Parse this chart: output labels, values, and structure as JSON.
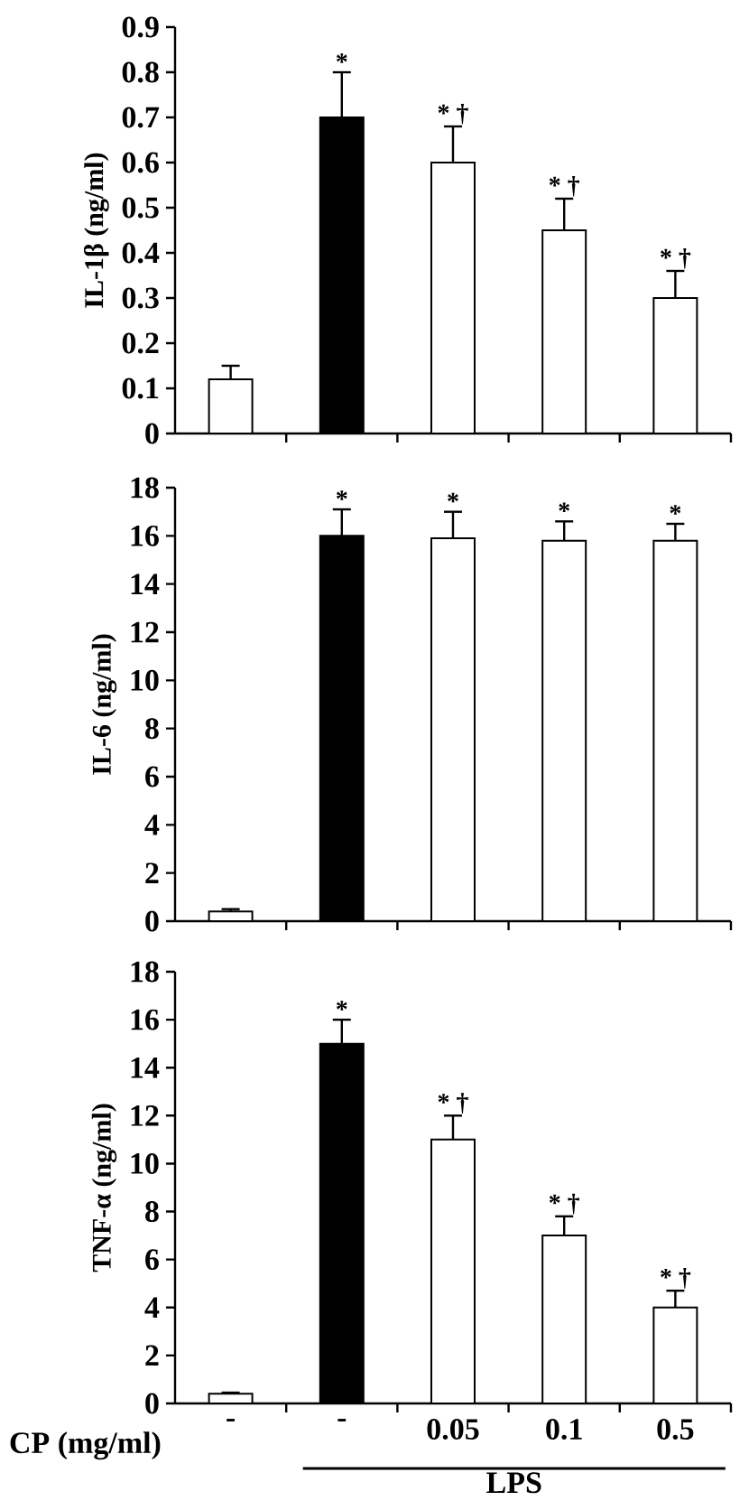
{
  "chart_data": [
    {
      "type": "bar",
      "ylabel": "IL-1β (ng/ml)",
      "categories": [
        null,
        null,
        null,
        null,
        null
      ],
      "values": [
        0.12,
        0.7,
        0.6,
        0.45,
        0.3
      ],
      "colors": [
        "#ffffff",
        "#000000",
        "#ffffff",
        "#ffffff",
        "#ffffff"
      ],
      "errors": [
        [
          0.12,
          0.15
        ],
        [
          0.7,
          0.8
        ],
        [
          0.6,
          0.68
        ],
        [
          0.45,
          0.52
        ],
        [
          0.3,
          0.36
        ]
      ],
      "value_labels": [
        null,
        "*",
        "* †",
        "* †",
        "* †"
      ],
      "ylim": [
        0,
        0.9
      ],
      "yticks": [
        0,
        0.1,
        0.2,
        0.3,
        0.4,
        0.5,
        0.6,
        0.7,
        0.8,
        0.9
      ],
      "tick_labels": "y"
    },
    {
      "type": "bar",
      "ylabel": "IL-6 (ng/ml)",
      "categories": [
        null,
        null,
        null,
        null,
        null
      ],
      "values": [
        0.4,
        16,
        15.9,
        15.8,
        15.8
      ],
      "colors": [
        "#ffffff",
        "#000000",
        "#ffffff",
        "#ffffff",
        "#ffffff"
      ],
      "errors": [
        [
          0.4,
          0.5
        ],
        [
          16,
          17.1
        ],
        [
          15.9,
          17
        ],
        [
          15.8,
          16.6
        ],
        [
          15.8,
          16.5
        ]
      ],
      "value_labels": [
        null,
        "*",
        "*",
        "*",
        "*"
      ],
      "ylim": [
        0,
        18
      ],
      "yticks": [
        0,
        2,
        4,
        6,
        8,
        10,
        12,
        14,
        16,
        18
      ],
      "tick_labels": "y"
    },
    {
      "type": "bar",
      "ylabel": "TNF-α (ng/ml)",
      "xlabel": "CP (mg/ml)",
      "categories": [
        "-",
        "-",
        "0.05",
        "0.1",
        "0.5"
      ],
      "values": [
        0.4,
        15,
        11,
        7,
        4
      ],
      "colors": [
        "#ffffff",
        "#000000",
        "#ffffff",
        "#ffffff",
        "#ffffff"
      ],
      "errors": [
        [
          0.4,
          0.45
        ],
        [
          15,
          16
        ],
        [
          11,
          12
        ],
        [
          7,
          7.8
        ],
        [
          4,
          4.7
        ]
      ],
      "value_labels": [
        null,
        "*",
        "* †",
        "* †",
        "* †"
      ],
      "ylim": [
        0,
        18
      ],
      "yticks": [
        0,
        2,
        4,
        6,
        8,
        10,
        12,
        14,
        16,
        18
      ],
      "annotations": [
        "LPS"
      ]
    }
  ]
}
